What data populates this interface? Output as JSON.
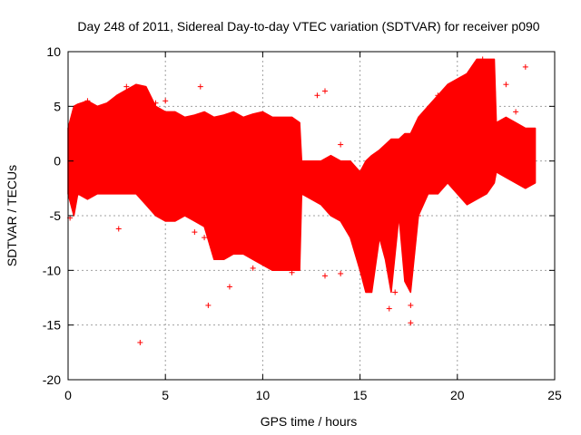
{
  "chart_data": {
    "type": "scatter",
    "title": "Day 248 of 2011, Sidereal Day-to-day VTEC variation (SDTVAR) for receiver p090",
    "xlabel": "GPS time / hours",
    "ylabel": "SDTVAR / TECUs",
    "xlim": [
      0,
      25
    ],
    "ylim": [
      -20,
      10
    ],
    "xticks": [
      0,
      5,
      10,
      15,
      20,
      25
    ],
    "yticks": [
      -20,
      -15,
      -10,
      -5,
      0,
      5,
      10
    ],
    "grid": true,
    "marker": "+",
    "series_color": "#ff0000",
    "envelope_x": [
      0,
      0.3,
      0.5,
      1,
      1.5,
      2,
      2.5,
      3,
      3.5,
      4,
      4.5,
      5,
      5.5,
      6,
      6.5,
      7,
      7.5,
      8,
      8.5,
      9,
      9.5,
      10,
      10.5,
      11,
      11.5,
      11.9,
      12,
      12.5,
      13,
      13.5,
      14,
      14.5,
      15,
      15.3,
      15.6,
      16,
      16.3,
      16.6,
      17,
      17.3,
      17.6,
      18,
      18.5,
      19,
      19.5,
      20,
      20.5,
      21,
      21.5,
      21.9,
      22,
      22.5,
      23,
      23.5,
      24
    ],
    "envelope_upper": [
      3,
      5,
      5.2,
      5.5,
      5,
      5.3,
      6,
      6.5,
      7,
      6.8,
      5,
      4.5,
      4.5,
      4,
      4.2,
      4.5,
      4,
      4.2,
      4.5,
      4,
      4.3,
      4.5,
      4,
      4,
      4,
      3.5,
      0,
      0,
      0,
      0.5,
      0,
      0,
      -1,
      0,
      0.5,
      1,
      1.5,
      2,
      2,
      2.5,
      2.5,
      4,
      5,
      6,
      7,
      7.5,
      8,
      9.3,
      9.3,
      9.3,
      3.5,
      4,
      3.5,
      3,
      3
    ],
    "envelope_lower": [
      -3,
      -5,
      -3,
      -3.5,
      -3,
      -3,
      -3,
      -3,
      -3,
      -4,
      -5,
      -5.5,
      -5.5,
      -5,
      -5.5,
      -6,
      -9,
      -9,
      -8.5,
      -8.5,
      -9,
      -9.5,
      -10,
      -10,
      -10,
      -10,
      -3,
      -3.5,
      -4,
      -5,
      -5.5,
      -7,
      -10,
      -12,
      -12,
      -7,
      -9,
      -12,
      -5,
      -11,
      -12,
      -5,
      -3,
      -3,
      -2,
      -3,
      -4,
      -3.5,
      -3,
      -2,
      -1,
      -1.5,
      -2,
      -2.5,
      -2
    ],
    "points": [
      [
        3.7,
        -16.6
      ],
      [
        2.6,
        -6.2
      ],
      [
        6.8,
        6.8
      ],
      [
        13.2,
        6.4
      ],
      [
        23.5,
        8.6
      ],
      [
        13.2,
        -10.5
      ],
      [
        14.0,
        -10.3
      ],
      [
        16.5,
        -13.5
      ],
      [
        17.6,
        -14.8
      ],
      [
        17.6,
        -13.2
      ],
      [
        7.2,
        -13.2
      ],
      [
        8.3,
        -11.5
      ],
      [
        6.5,
        -6.5
      ],
      [
        5.0,
        5.5
      ],
      [
        4.5,
        5.3
      ],
      [
        0.1,
        -5.2
      ],
      [
        0.2,
        2.5
      ],
      [
        9.5,
        -9.8
      ],
      [
        14.0,
        1.5
      ],
      [
        22.5,
        7.0
      ],
      [
        23.0,
        4.5
      ],
      [
        21.3,
        9.3
      ],
      [
        18.0,
        -5.0
      ],
      [
        16.8,
        -12.0
      ],
      [
        12.8,
        6.0
      ],
      [
        7.0,
        -7.0
      ],
      [
        11.5,
        -10.2
      ],
      [
        3.0,
        6.8
      ],
      [
        1.0,
        5.5
      ],
      [
        19.0,
        6.0
      ]
    ]
  }
}
